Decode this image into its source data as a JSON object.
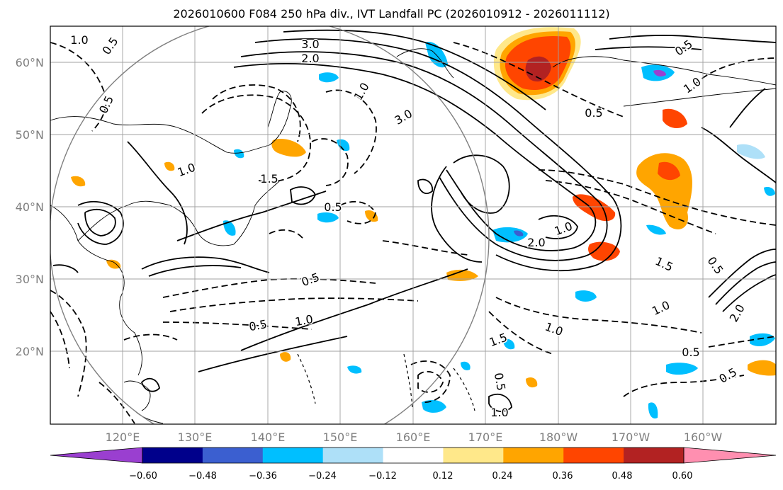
{
  "title": "2026010600 F084 250 hPa div., IVT Landfall PC (2026010912 - 2026011112)",
  "lat_labels": [
    "60°N",
    "50°N",
    "40°N",
    "30°N",
    "20°N"
  ],
  "lon_labels": [
    "120°E",
    "130°E",
    "140°E",
    "150°E",
    "160°E",
    "170°E",
    "180°W",
    "170°W",
    "160°W"
  ],
  "colorbar": {
    "ticks": [
      "−0.60",
      "−0.48",
      "−0.36",
      "−0.24",
      "−0.12",
      "0.12",
      "0.24",
      "0.36",
      "0.48",
      "0.60"
    ],
    "colors": [
      "#9a3fd0",
      "#00008b",
      "#3b5fd0",
      "#00bfff",
      "#aee0f8",
      "#ffffff",
      "#ffe88a",
      "#ffa500",
      "#ff4500",
      "#b22222",
      "#ff8fb0"
    ]
  },
  "contour_labels": [
    "1.0",
    "0.5",
    "3.0",
    "2.0",
    "0.5",
    "1.0",
    "1.5",
    "0.5",
    "1.0",
    "3.0",
    "2.0",
    "1.0",
    "0.5",
    "0.5",
    "1.0",
    "1.5",
    "0.5",
    "1.0",
    "0.5",
    "1.0",
    "0.5",
    "1.0",
    "1.5",
    "0.5",
    "1.0",
    "2.0",
    "0.5",
    "0.5"
  ]
}
